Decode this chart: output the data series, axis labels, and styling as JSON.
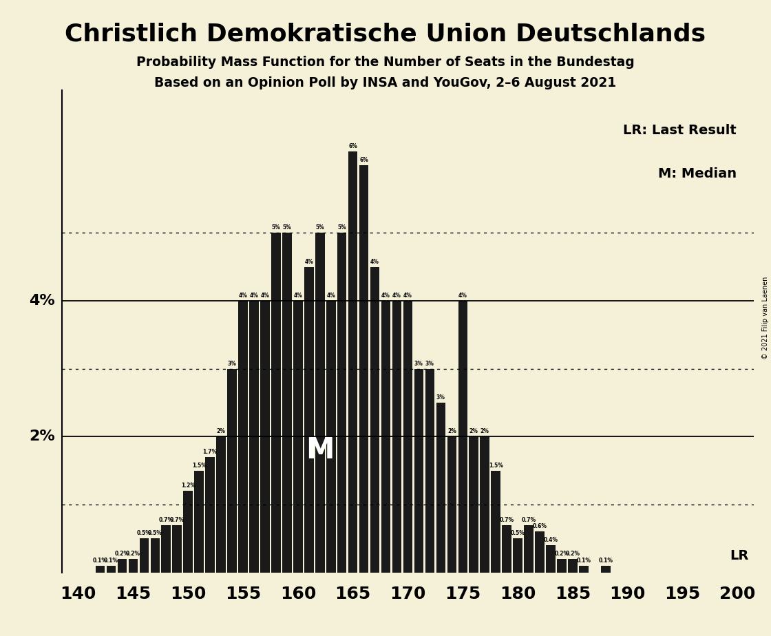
{
  "title": "Christlich Demokratische Union Deutschlands",
  "subtitle1": "Probability Mass Function for the Number of Seats in the Bundestag",
  "subtitle2": "Based on an Opinion Poll by INSA and YouGov, 2–6 August 2021",
  "legend_lr": "LR: Last Result",
  "legend_m": "M: Median",
  "copyright": "© 2021 Filip van Laenen",
  "background_color": "#f5f0d8",
  "bar_color": "#1a1a1a",
  "seats": [
    140,
    141,
    142,
    143,
    144,
    145,
    146,
    147,
    148,
    149,
    150,
    151,
    152,
    153,
    154,
    155,
    156,
    157,
    158,
    159,
    160,
    161,
    162,
    163,
    164,
    165,
    166,
    167,
    168,
    169,
    170,
    171,
    172,
    173,
    174,
    175,
    176,
    177,
    178,
    179,
    180,
    181,
    182,
    183,
    184,
    185,
    186,
    187,
    188,
    189,
    190,
    191,
    192,
    193,
    194,
    195,
    196,
    197,
    198,
    199,
    200
  ],
  "probs": [
    0.0,
    0.0,
    0.001,
    0.001,
    0.002,
    0.002,
    0.005,
    0.005,
    0.007,
    0.007,
    0.012,
    0.015,
    0.017,
    0.02,
    0.03,
    0.04,
    0.04,
    0.04,
    0.05,
    0.05,
    0.04,
    0.045,
    0.05,
    0.04,
    0.05,
    0.062,
    0.06,
    0.045,
    0.04,
    0.04,
    0.04,
    0.03,
    0.03,
    0.025,
    0.02,
    0.04,
    0.02,
    0.02,
    0.015,
    0.007,
    0.005,
    0.007,
    0.006,
    0.004,
    0.002,
    0.002,
    0.001,
    0.0,
    0.001,
    0.0,
    0.0,
    0.0,
    0.0,
    0.0,
    0.0,
    0.0,
    0.0,
    0.0,
    0.0,
    0.0,
    0.0
  ],
  "bar_labels": [
    "0%",
    "0%",
    "0.1%",
    "0.1%",
    "0.2%",
    "0.2%",
    "0.5%",
    "0.5%",
    "0.7%",
    "0.7%",
    "1.2%",
    "1.5%",
    "1.7%",
    "2%",
    "3%",
    "4%",
    "4%",
    "4%",
    "5%",
    "5%",
    "4%",
    "4%",
    "5%",
    "4%",
    "5%",
    "6%",
    "6%",
    "4%",
    "4%",
    "4%",
    "4%",
    "3%",
    "3%",
    "3%",
    "2%",
    "4%",
    "2%",
    "2%",
    "1.5%",
    "0.7%",
    "0.5%",
    "0.7%",
    "0.6%",
    "0.4%",
    "0.2%",
    "0.2%",
    "0.1%",
    "0%",
    "0.1%",
    "0%",
    "0%",
    "0%",
    "0%",
    "0%",
    "0%",
    "0%",
    "0%",
    "0%",
    "0%",
    "0%",
    "0%"
  ],
  "xlim": [
    138.5,
    201.5
  ],
  "ylim": [
    0,
    0.071
  ],
  "solid_hlines": [
    0.02,
    0.04
  ],
  "dotted_hlines": [
    0.01,
    0.03,
    0.05
  ],
  "labeled_yticks": [
    0.02,
    0.04
  ],
  "ytick_labels_map": {
    "0.02": "2%",
    "0.04": "4%"
  },
  "median_seat": 163,
  "lr_seat": 175,
  "xticks": [
    140,
    145,
    150,
    155,
    160,
    165,
    170,
    175,
    180,
    185,
    190,
    195,
    200
  ]
}
